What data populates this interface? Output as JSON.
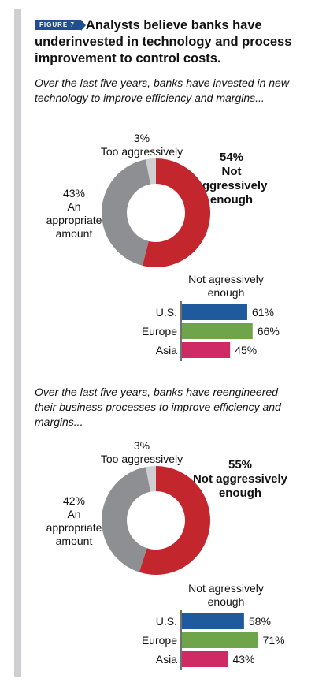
{
  "figure": {
    "badge": "FIGURE 7",
    "title": "Analysts believe banks have underinvested in technology and process improvement to control costs."
  },
  "chart_data": [
    {
      "type": "pie",
      "subtitle": "Over the last five years, banks have invested in new technology to improve efficiency and margins...",
      "slices": [
        {
          "pct": "54%",
          "label": "Not aggressively enough",
          "value": 54,
          "color": "#c4262e"
        },
        {
          "pct": "43%",
          "label": "An appropriate amount",
          "value": 43,
          "color": "#8e8f93"
        },
        {
          "pct": "3%",
          "label": "Too aggressively",
          "value": 3,
          "color": "#cfcfd1"
        }
      ],
      "bars": {
        "type": "bar",
        "title": "Not agressively enough",
        "categories": [
          "U.S.",
          "Europe",
          "Asia"
        ],
        "values": [
          61,
          66,
          45
        ],
        "labels": [
          "61%",
          "66%",
          "45%"
        ],
        "colors": [
          "#1f5a9d",
          "#6fa54a",
          "#cf2a64"
        ]
      }
    },
    {
      "type": "pie",
      "subtitle": "Over the last five years, banks have reengineered their business processes to improve efficiency and margins...",
      "slices": [
        {
          "pct": "55%",
          "label": "Not aggressively enough",
          "value": 55,
          "color": "#c4262e"
        },
        {
          "pct": "42%",
          "label": "An appropriate amount",
          "value": 42,
          "color": "#8e8f93"
        },
        {
          "pct": "3%",
          "label": "Too aggressively",
          "value": 3,
          "color": "#cfcfd1"
        }
      ],
      "bars": {
        "type": "bar",
        "title": "Not agressively enough",
        "categories": [
          "U.S.",
          "Europe",
          "Asia"
        ],
        "values": [
          58,
          71,
          43
        ],
        "labels": [
          "58%",
          "71%",
          "43%"
        ],
        "colors": [
          "#1f5a9d",
          "#6fa54a",
          "#cf2a64"
        ]
      }
    }
  ]
}
